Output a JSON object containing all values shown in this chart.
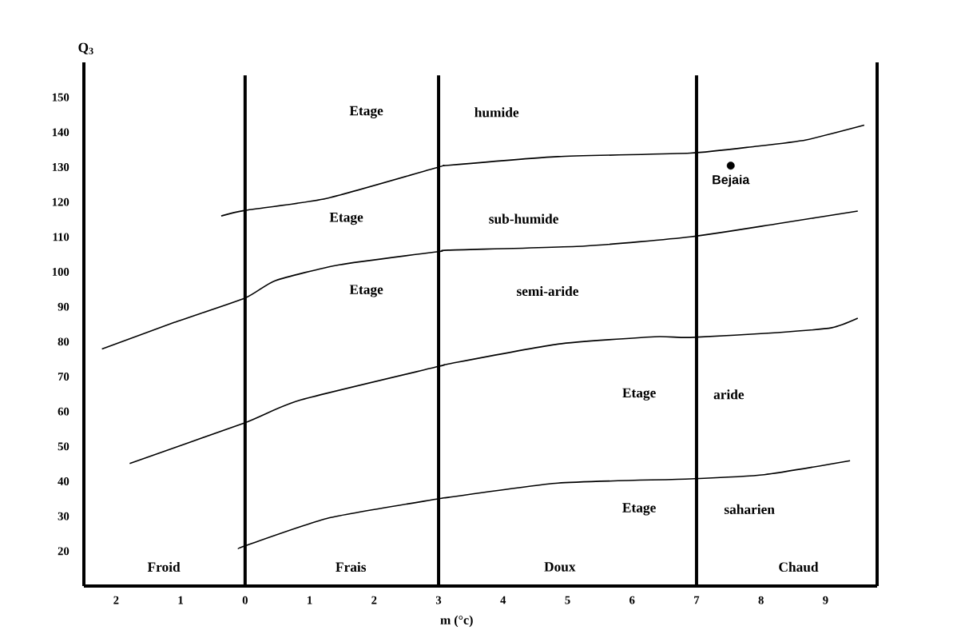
{
  "chart_data": {
    "type": "line",
    "xlabel": "m (°c)",
    "ylabel": "Q$_{3}$",
    "xlim": [
      -2.5,
      9.8
    ],
    "ylim": [
      10,
      160
    ],
    "xticks": [
      {
        "value": -2,
        "label": "2"
      },
      {
        "value": -1,
        "label": "1"
      },
      0,
      1,
      2,
      3,
      4,
      5,
      6,
      7,
      8,
      9
    ],
    "yticks": [
      20,
      30,
      40,
      50,
      60,
      70,
      80,
      90,
      100,
      110,
      120,
      130,
      140,
      150
    ],
    "series": [
      {
        "color": "#000000",
        "x": [
          -0.37,
          0,
          1.26,
          3,
          3.15,
          4.85,
          6.9,
          7.9,
          8.7,
          9.6
        ],
        "values": [
          116,
          117.6,
          121,
          130,
          130.5,
          133,
          134,
          135.9,
          137.8,
          142
        ]
      },
      {
        "color": "#000000",
        "x": [
          -2.22,
          -1.1,
          0,
          0.47,
          1.46,
          3,
          3.15,
          5.27,
          6.9,
          8.26,
          9.5
        ],
        "values": [
          77.9,
          85.5,
          92.5,
          97.5,
          102,
          105.8,
          106.2,
          107.4,
          110,
          113.8,
          117.4
        ]
      },
      {
        "color": "#000000",
        "x": [
          -1.79,
          0,
          0.84,
          3,
          3.15,
          4.85,
          6.35,
          6.9,
          8.26,
          9.1,
          9.5
        ],
        "values": [
          45.1,
          56.8,
          63.2,
          72.9,
          73.6,
          79.3,
          81.4,
          81.2,
          82.6,
          84,
          86.7
        ]
      },
      {
        "color": "#000000",
        "x": [
          -0.1,
          0,
          1.3,
          3,
          3.15,
          4.85,
          6.9,
          8.05,
          9.38
        ],
        "values": [
          20.7,
          21.5,
          29.5,
          35,
          35.4,
          39.5,
          40.7,
          41.9,
          45.9
        ]
      },
      {
        "type": "scatter",
        "name": "Bejaia",
        "color": "#000000",
        "marker": "circle",
        "x": [
          7.53
        ],
        "values": [
          130.4
        ]
      }
    ],
    "ref_lines": [
      {
        "axis": "x",
        "value": 0,
        "color": "#000000"
      },
      {
        "axis": "x",
        "value": 3,
        "color": "#000000"
      },
      {
        "axis": "x",
        "value": 7,
        "color": "#000000"
      }
    ],
    "annotations": [
      "Etage",
      "humide",
      "Etage",
      "sub-humide",
      "Etage",
      "semi-aride",
      "Etage",
      "aride",
      "Etage",
      "saharien",
      "Froid",
      "Frais",
      "Doux",
      "Chaud"
    ]
  }
}
